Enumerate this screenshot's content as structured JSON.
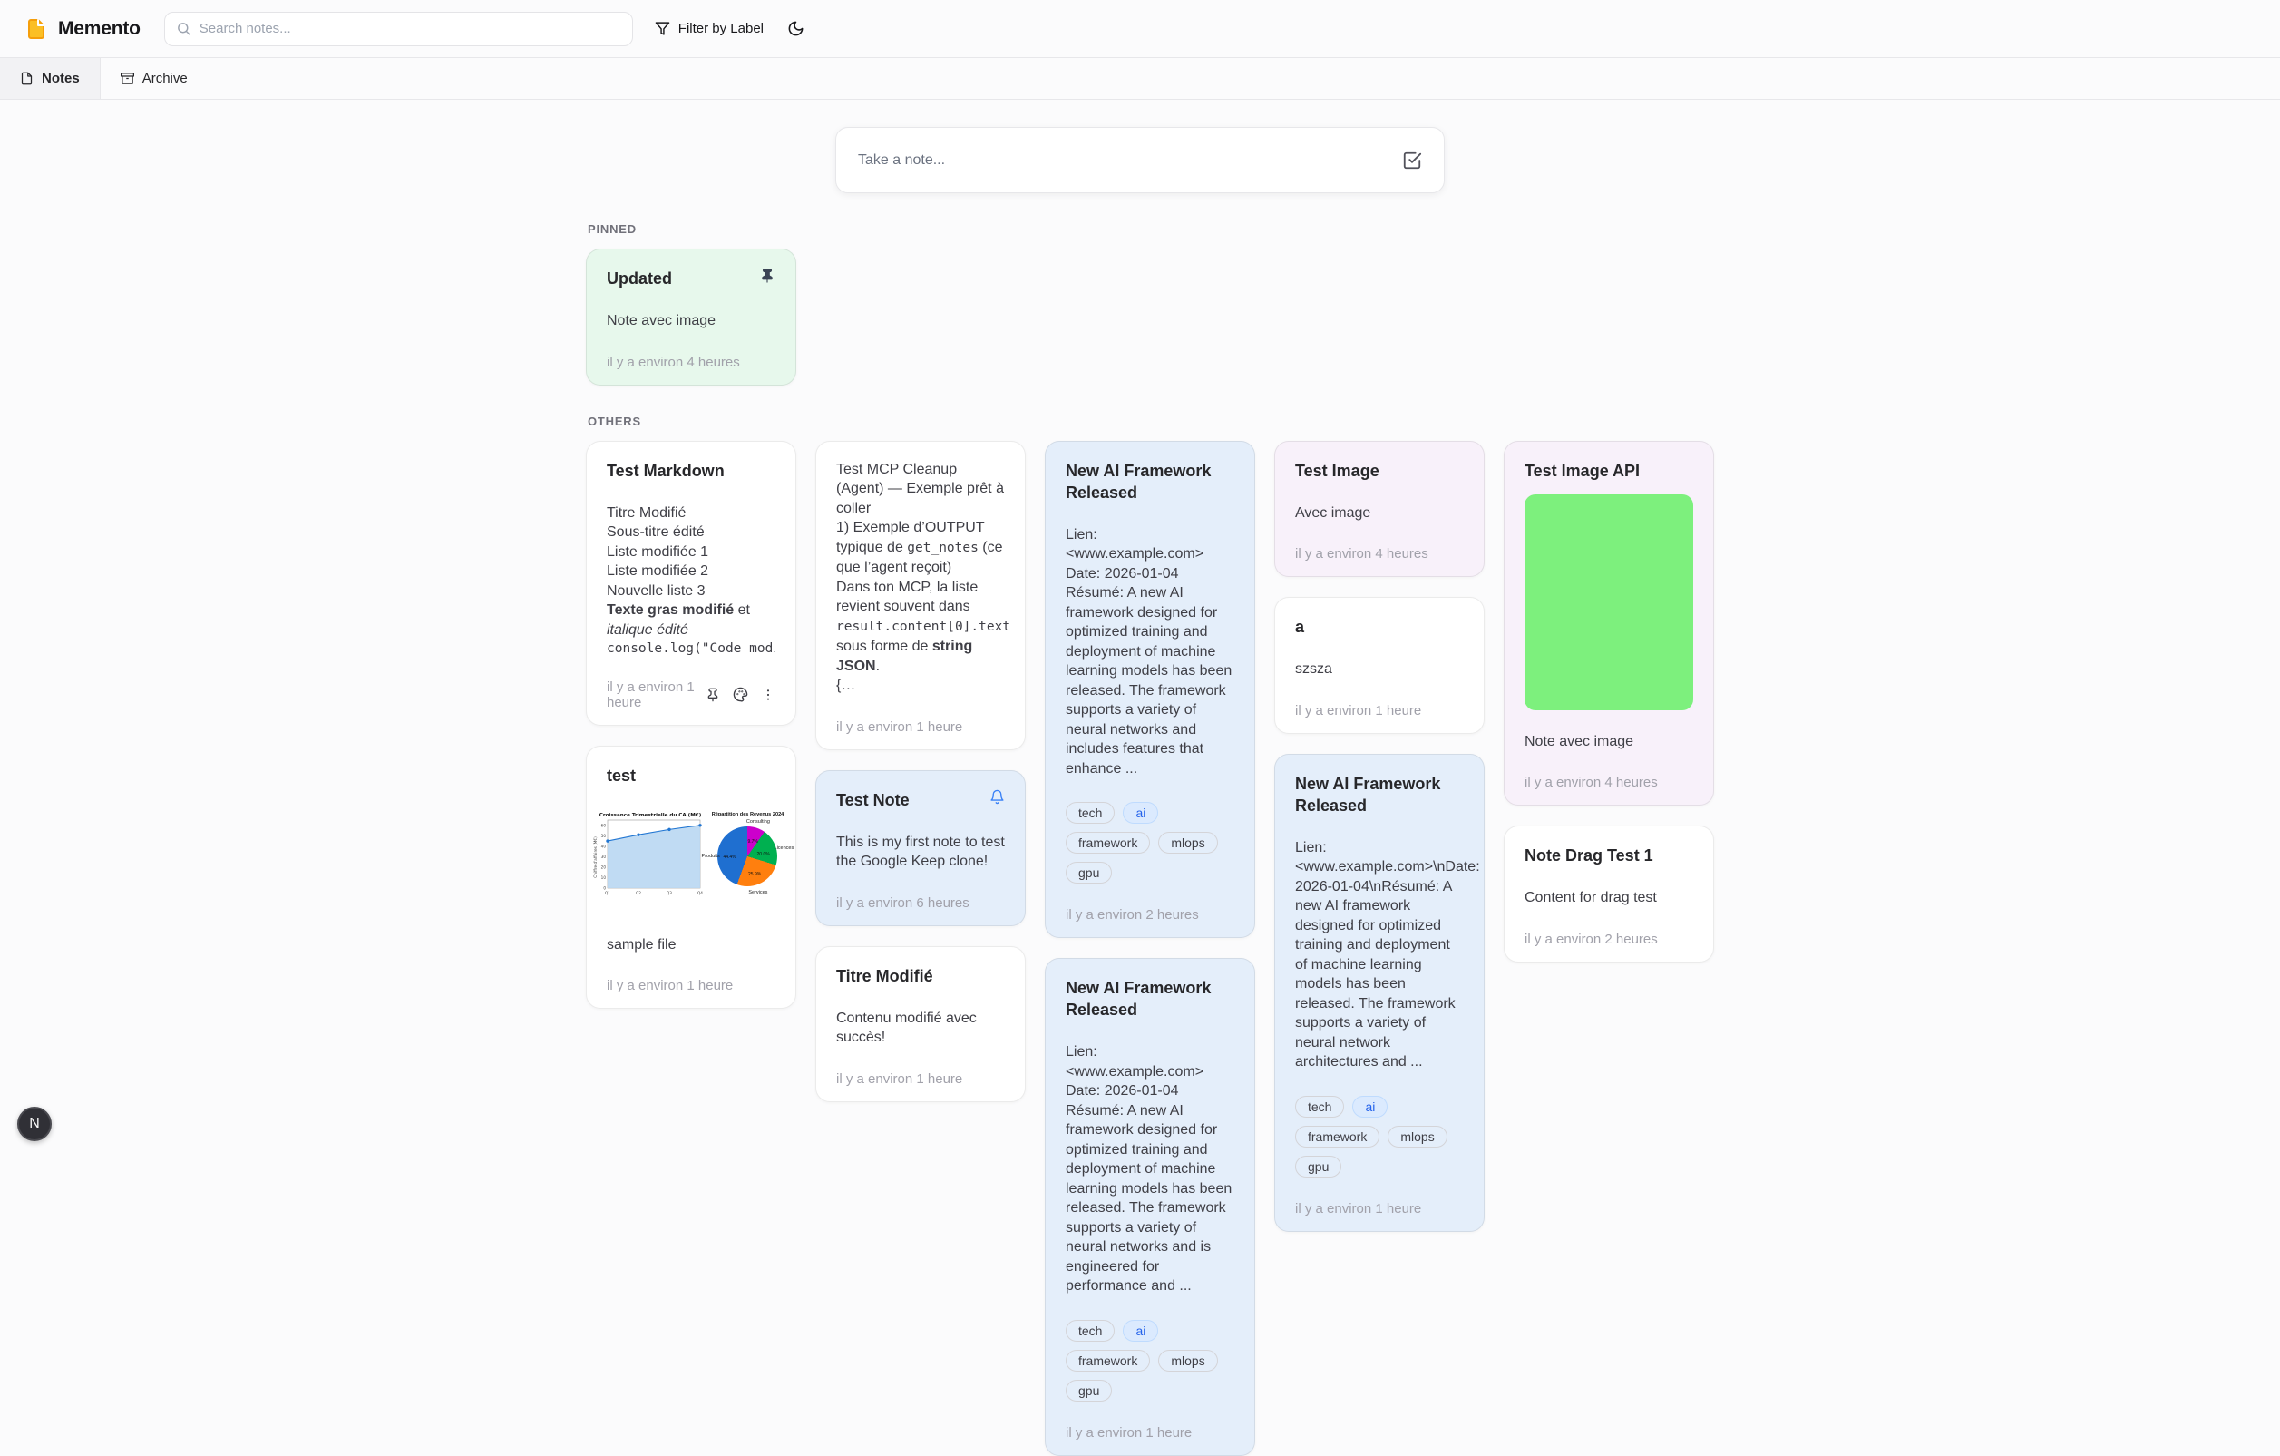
{
  "header": {
    "app_title": "Memento",
    "search_placeholder": "Search notes...",
    "filter_label": "Filter by Label"
  },
  "tabs": [
    {
      "label": "Notes"
    },
    {
      "label": "Archive"
    }
  ],
  "composer": {
    "placeholder": "Take a note..."
  },
  "sections": {
    "pinned_label": "PINNED",
    "others_label": "OTHERS"
  },
  "fab": {
    "label": "N"
  },
  "colors": {
    "page_bg": "#fbfbfc",
    "card_green": "#e7f8ec",
    "card_blue": "#e4eefa",
    "card_purple": "#f8f1fa",
    "tag_accent_bg": "#dbeafe",
    "tag_accent_text": "#2563eb",
    "bell_blue": "#3b82f6",
    "logo_amber": "#fbbf24",
    "image_green": "#7df07d"
  },
  "notes": {
    "updated": {
      "title": "Updated",
      "body": "Note avec image",
      "time": "il y a environ 4 heures"
    },
    "test_markdown": {
      "title": "Test Markdown",
      "lines": [
        "Titre Modifié",
        "Sous-titre édité",
        "Liste modifiée 1",
        "Liste modifiée 2",
        "Nouvelle liste 3"
      ],
      "bold": "Texte gras modifié",
      "mid": " et ",
      "italic": "italique édité",
      "code": "console.log(\"Code modifié a",
      "time": "il y a environ 1 heure"
    },
    "test_chart": {
      "title": "test",
      "body": "sample file",
      "time": "il y a environ 1 heure",
      "charts": [
        {
          "type": "area",
          "title": "Croissance Trimestrielle du CA (M€)",
          "ylabel": "Chiffre d'affaires (M€)",
          "categories": [
            "Q1",
            "Q2",
            "Q3",
            "Q4"
          ],
          "values": [
            45,
            51,
            56,
            60
          ],
          "ylim": [
            0,
            65
          ],
          "line_color": "#2176d2",
          "fill_color": "#b9d7f2"
        },
        {
          "type": "pie",
          "title": "Répartition des Revenus 2024",
          "labels": [
            "Consulting",
            "Licences",
            "Services",
            "Produits"
          ],
          "values": [
            9.7,
            20.0,
            25.9,
            44.4
          ],
          "value_labels": [
            "9.7%",
            "20.0%",
            "25.9%",
            "44.4%"
          ],
          "colors": [
            "#cc00cc",
            "#00b050",
            "#ff7f0e",
            "#1f6fd0"
          ]
        }
      ]
    },
    "mcp": {
      "l1": "Test MCP Cleanup (Agent) — Exemple prêt à coller",
      "l2a": "1) Exemple d’OUTPUT typique de ",
      "l2code": "get_notes",
      "l2b": " (ce que l’agent reçoit)",
      "l3a": "Dans ton MCP, la liste revient souvent dans ",
      "l3code": "result.content[0].text",
      "l3b": " sous forme de ",
      "l3bold": "string JSON",
      "l3c": ".",
      "l4": "{…",
      "time": "il y a environ 1 heure"
    },
    "test_note": {
      "title": "Test Note",
      "body": "This is my first note to test the Google Keep clone!",
      "time": "il y a environ 6 heures"
    },
    "titre_modifie": {
      "title": "Titre Modifié",
      "body": "Contenu modifié avec succès!",
      "time": "il y a environ 1 heure"
    },
    "ai1": {
      "title": "New AI Framework Released",
      "l1": "Lien: <www.example.com>",
      "l2": "Date: 2026-01-04",
      "l3": "Résumé: A new AI framework designed for optimized training and deployment of machine learning models has been released. The framework supports a variety of neural networks and includes features that enhance ...",
      "tags": [
        "tech",
        "ai",
        "framework",
        "mlops",
        "gpu"
      ],
      "time": "il y a environ 2 heures"
    },
    "ai2": {
      "title": "New AI Framework Released",
      "l1": "Lien: <www.example.com>",
      "l2": "Date: 2026-01-04",
      "l3": "Résumé: A new AI framework designed for optimized training and deployment of machine learning models has been released. The framework supports a variety of neural networks and is engineered for performance and ...",
      "tags": [
        "tech",
        "ai",
        "framework",
        "mlops",
        "gpu"
      ],
      "time": "il y a environ 1 heure"
    },
    "test_image": {
      "title": "Test Image",
      "body": "Avec image",
      "time": "il y a environ 4 heures"
    },
    "a_note": {
      "title": "a",
      "body": "szsza",
      "time": "il y a environ 1 heure"
    },
    "ai3": {
      "title": "New AI Framework Released",
      "body": "Lien: <www.example.com>\\nDate: 2026-01-04\\nRésumé: A new AI framework designed for optimized training and deployment of machine learning models has been released. The framework supports a variety of neural network architectures and ...",
      "tags": [
        "tech",
        "ai",
        "framework",
        "mlops",
        "gpu"
      ],
      "time": "il y a environ 1 heure"
    },
    "test_image_api": {
      "title": "Test Image API",
      "body": "Note avec image",
      "time": "il y a environ 4 heures"
    },
    "drag_test": {
      "title": "Note Drag Test 1",
      "body": "Content for drag test",
      "time": "il y a environ 2 heures"
    }
  }
}
